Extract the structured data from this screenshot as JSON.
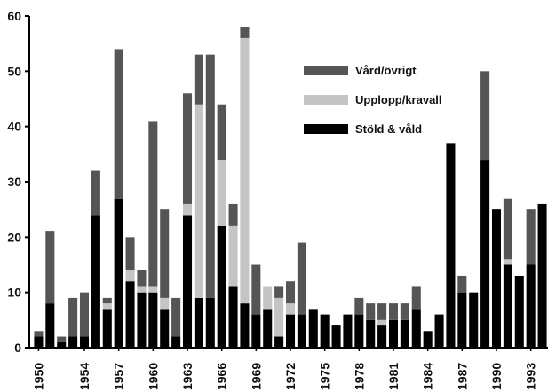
{
  "chart_data": {
    "type": "bar",
    "stacked": true,
    "x": [
      1950,
      1951,
      1952,
      1953,
      1954,
      1955,
      1956,
      1957,
      1958,
      1959,
      1960,
      1961,
      1962,
      1963,
      1964,
      1965,
      1966,
      1967,
      1968,
      1969,
      1970,
      1971,
      1972,
      1973,
      1974,
      1975,
      1976,
      1977,
      1978,
      1979,
      1980,
      1981,
      1982,
      1983,
      1984,
      1985,
      1986,
      1987,
      1988,
      1989,
      1990,
      1991,
      1992,
      1993,
      1994
    ],
    "xtick_labels": [
      "1950",
      "1954",
      "1957",
      "1960",
      "1963",
      "1966",
      "1969",
      "1972",
      "1975",
      "1978",
      "1981",
      "1984",
      "1987",
      "1990",
      "1993"
    ],
    "ylim": [
      0,
      60
    ],
    "yticks": [
      "0",
      "10",
      "20",
      "30",
      "40",
      "50",
      "60"
    ],
    "legend_position": "upper-right",
    "series": [
      {
        "name": "Stöld & våld",
        "color": "#000000",
        "values": [
          2,
          8,
          1,
          2,
          2,
          24,
          7,
          27,
          12,
          10,
          10,
          7,
          2,
          24,
          9,
          9,
          22,
          11,
          8,
          6,
          7,
          2,
          6,
          6,
          7,
          6,
          4,
          6,
          6,
          5,
          4,
          5,
          5,
          7,
          3,
          6,
          37,
          10,
          10,
          34,
          25,
          15,
          13,
          15,
          26
        ]
      },
      {
        "name": "Upplopp/kravall",
        "color": "#c4c4c4",
        "values": [
          0,
          0,
          0,
          0,
          0,
          0,
          1,
          0,
          2,
          1,
          1,
          2,
          0,
          2,
          35,
          0,
          12,
          11,
          48,
          0,
          4,
          7,
          2,
          0,
          0,
          0,
          0,
          0,
          0,
          0,
          1,
          0,
          0,
          0,
          0,
          0,
          0,
          0,
          0,
          0,
          0,
          1,
          0,
          0,
          0
        ]
      },
      {
        "name": "Vård/övrigt",
        "color": "#555555",
        "values": [
          1,
          13,
          1,
          7,
          8,
          8,
          1,
          27,
          6,
          3,
          30,
          16,
          7,
          20,
          9,
          44,
          10,
          4,
          2,
          9,
          0,
          2,
          4,
          13,
          0,
          0,
          0,
          0,
          3,
          3,
          3,
          3,
          3,
          4,
          0,
          0,
          0,
          3,
          0,
          16,
          0,
          11,
          0,
          10,
          0
        ]
      }
    ],
    "legend_order": [
      "Vård/övrigt",
      "Upplopp/kravall",
      "Stöld & våld"
    ]
  }
}
